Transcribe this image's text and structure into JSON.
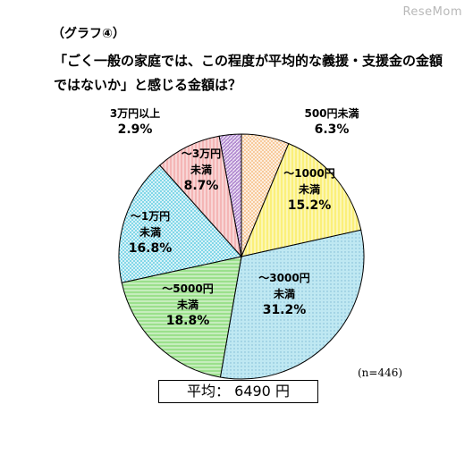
{
  "watermark": "ReseMom",
  "caption": "（グラフ④）",
  "title": "「ごく一般の家庭では、この程度が平均的な義援・支援金の金額ではないか」と感じる金額は？",
  "note": "(n=446)",
  "average": {
    "label": "平均",
    "separator": "：",
    "value": "6490",
    "unit": "円"
  },
  "chart_data": {
    "type": "pie",
    "title": "「ごく一般の家庭では、この程度が平均的な義援・支援金の金額ではないか」と感じる金額は？",
    "start_direction": "top",
    "direction": "clockwise",
    "slices": [
      {
        "label_lines": [
          "500円未満"
        ],
        "value_text": "6.3%",
        "value": 6.3,
        "color": "#f6c18a",
        "pattern": "crosshatch",
        "label_placement": "outside"
      },
      {
        "label_lines": [
          "～1000円",
          "未満"
        ],
        "value_text": "15.2%",
        "value": 15.2,
        "color": "#fbf07a",
        "pattern": "vertical",
        "label_placement": "inside"
      },
      {
        "label_lines": [
          "～3000円",
          "未満"
        ],
        "value_text": "31.2%",
        "value": 31.2,
        "color": "#bfe8f2",
        "pattern": "dots",
        "label_placement": "inside"
      },
      {
        "label_lines": [
          "～5000円",
          "未満"
        ],
        "value_text": "18.8%",
        "value": 18.8,
        "color": "#9be08c",
        "pattern": "horizontal",
        "label_placement": "inside"
      },
      {
        "label_lines": [
          "～1万円",
          "未満"
        ],
        "value_text": "16.8%",
        "value": 16.8,
        "color": "#6cd0e4",
        "pattern": "crosshatch",
        "label_placement": "inside"
      },
      {
        "label_lines": [
          "～3万円",
          "未満"
        ],
        "value_text": "8.7%",
        "value": 8.7,
        "color": "#f4b6b6",
        "pattern": "vertical",
        "label_placement": "inside"
      },
      {
        "label_lines": [
          "3万円以上"
        ],
        "value_text": "2.9%",
        "value": 2.9,
        "color": "#b28ad0",
        "pattern": "diagonal",
        "label_placement": "outside"
      }
    ]
  }
}
